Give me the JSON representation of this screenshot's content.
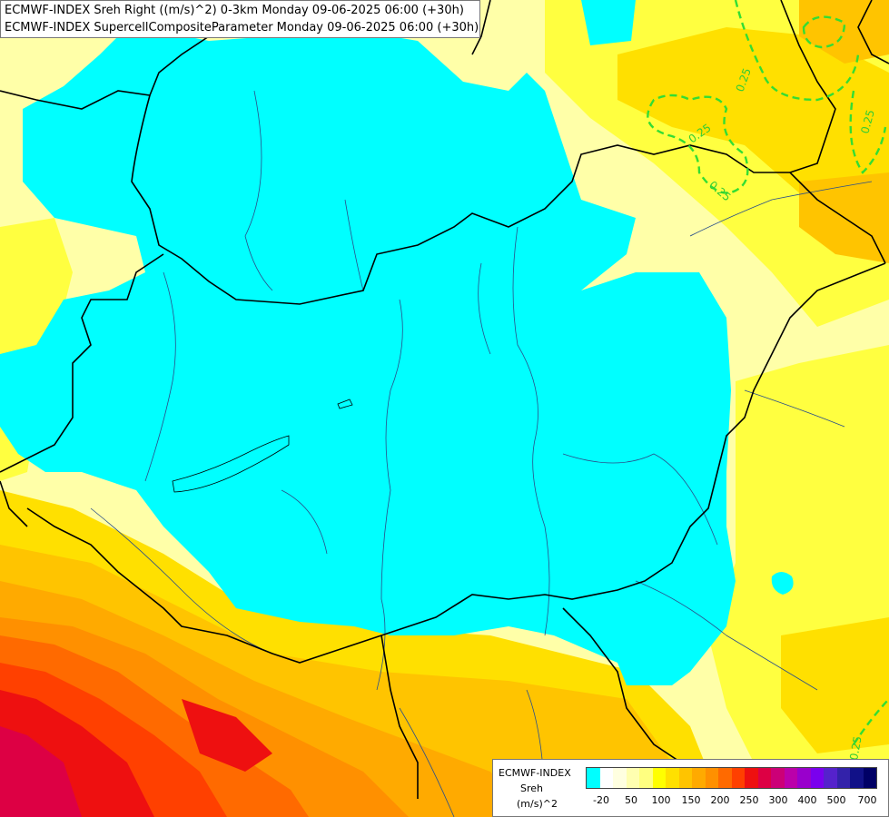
{
  "header": {
    "title_line_1": "ECMWF-INDEX Sreh Right ((m/s)^2) 0-3km Monday 09-06-2025 06:00 (+30h)",
    "title_line_2": "ECMWF-INDEX SupercellCompositeParameter Monday 09-06-2025 06:00 (+30h)"
  },
  "map": {
    "contour_labels": [
      "0.25",
      "0.25",
      "0.25",
      "0.25",
      "0.25"
    ],
    "contour_color": "#33dd33",
    "border_color": "#000000",
    "river_color": "#2a4f8a"
  },
  "legend": {
    "model": "ECMWF-INDEX",
    "parameter": "Sreh",
    "unit": "(m/s)^2",
    "tick_labels": [
      "-20",
      "50",
      "100",
      "150",
      "200",
      "250",
      "300",
      "400",
      "500",
      "700"
    ],
    "colors": [
      "#00ffff",
      "#ffffff",
      "#ffffe0",
      "#ffffb0",
      "#ffff80",
      "#ffff00",
      "#ffe000",
      "#ffc400",
      "#ffaa00",
      "#ff9000",
      "#ff6a00",
      "#ff4000",
      "#ee1010",
      "#dd0044",
      "#cc0077",
      "#bb00aa",
      "#9900cc",
      "#7a00ee",
      "#5522cc",
      "#3322aa",
      "#111188",
      "#000066"
    ]
  }
}
